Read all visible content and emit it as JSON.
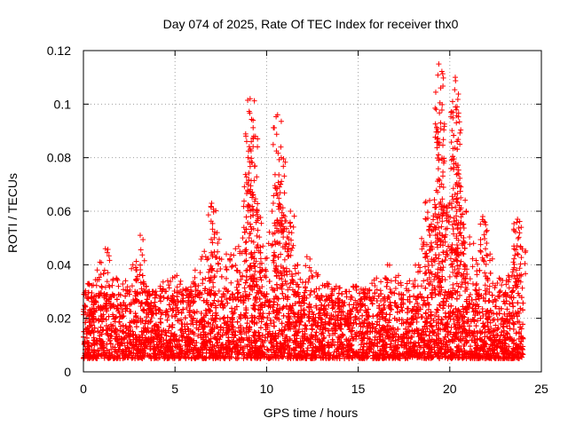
{
  "chart_data": {
    "type": "scatter",
    "title": "Day 074 of 2025, Rate Of TEC Index for receiver thx0",
    "xlabel": "GPS time / hours",
    "ylabel": "ROTI / TECUs",
    "xlim": [
      0,
      25
    ],
    "ylim": [
      0,
      0.12
    ],
    "xticks": [
      0,
      5,
      10,
      15,
      20,
      25
    ],
    "yticks": [
      0,
      0.02,
      0.04,
      0.06,
      0.08,
      0.1,
      0.12
    ],
    "xtick_labels": [
      "0",
      "5",
      "10",
      "15",
      "20",
      "25"
    ],
    "ytick_labels": [
      "0",
      "0.02",
      "0.04",
      "0.06",
      "0.08",
      "0.1",
      "0.12"
    ],
    "grid": true,
    "marker": "+",
    "color": "#ff0000",
    "data_range_hours": [
      0,
      24
    ],
    "baseline_band": [
      0.005,
      0.03
    ],
    "series": [
      {
        "name": "thx0 ROTI",
        "peaks": [
          {
            "x": 0.3,
            "y": 0.033
          },
          {
            "x": 0.9,
            "y": 0.041
          },
          {
            "x": 1.2,
            "y": 0.046
          },
          {
            "x": 1.8,
            "y": 0.035
          },
          {
            "x": 2.3,
            "y": 0.034
          },
          {
            "x": 2.7,
            "y": 0.04
          },
          {
            "x": 3.1,
            "y": 0.051
          },
          {
            "x": 3.6,
            "y": 0.03
          },
          {
            "x": 4.2,
            "y": 0.032
          },
          {
            "x": 4.6,
            "y": 0.034
          },
          {
            "x": 5.1,
            "y": 0.036
          },
          {
            "x": 5.6,
            "y": 0.031
          },
          {
            "x": 6.1,
            "y": 0.038
          },
          {
            "x": 6.6,
            "y": 0.045
          },
          {
            "x": 7.0,
            "y": 0.063
          },
          {
            "x": 7.3,
            "y": 0.052
          },
          {
            "x": 7.8,
            "y": 0.044
          },
          {
            "x": 8.3,
            "y": 0.046
          },
          {
            "x": 8.7,
            "y": 0.05
          },
          {
            "x": 9.0,
            "y": 0.07
          },
          {
            "x": 9.1,
            "y": 0.102
          },
          {
            "x": 9.3,
            "y": 0.088
          },
          {
            "x": 9.5,
            "y": 0.058
          },
          {
            "x": 9.8,
            "y": 0.047
          },
          {
            "x": 10.3,
            "y": 0.06
          },
          {
            "x": 10.6,
            "y": 0.096
          },
          {
            "x": 10.8,
            "y": 0.08
          },
          {
            "x": 11.0,
            "y": 0.058
          },
          {
            "x": 11.3,
            "y": 0.06
          },
          {
            "x": 11.7,
            "y": 0.04
          },
          {
            "x": 12.2,
            "y": 0.043
          },
          {
            "x": 12.7,
            "y": 0.037
          },
          {
            "x": 13.3,
            "y": 0.033
          },
          {
            "x": 13.8,
            "y": 0.032
          },
          {
            "x": 14.3,
            "y": 0.03
          },
          {
            "x": 14.9,
            "y": 0.032
          },
          {
            "x": 15.4,
            "y": 0.031
          },
          {
            "x": 16.0,
            "y": 0.035
          },
          {
            "x": 16.6,
            "y": 0.04
          },
          {
            "x": 17.2,
            "y": 0.036
          },
          {
            "x": 17.8,
            "y": 0.034
          },
          {
            "x": 18.3,
            "y": 0.04
          },
          {
            "x": 18.7,
            "y": 0.057
          },
          {
            "x": 18.9,
            "y": 0.064
          },
          {
            "x": 19.2,
            "y": 0.059
          },
          {
            "x": 19.4,
            "y": 0.115
          },
          {
            "x": 19.5,
            "y": 0.093
          },
          {
            "x": 19.7,
            "y": 0.062
          },
          {
            "x": 20.0,
            "y": 0.063
          },
          {
            "x": 20.3,
            "y": 0.11
          },
          {
            "x": 20.4,
            "y": 0.099
          },
          {
            "x": 20.6,
            "y": 0.065
          },
          {
            "x": 20.9,
            "y": 0.06
          },
          {
            "x": 21.3,
            "y": 0.048
          },
          {
            "x": 21.8,
            "y": 0.058
          },
          {
            "x": 22.2,
            "y": 0.044
          },
          {
            "x": 22.7,
            "y": 0.035
          },
          {
            "x": 23.2,
            "y": 0.036
          },
          {
            "x": 23.5,
            "y": 0.047
          },
          {
            "x": 23.7,
            "y": 0.057
          },
          {
            "x": 23.9,
            "y": 0.054
          }
        ]
      }
    ]
  }
}
